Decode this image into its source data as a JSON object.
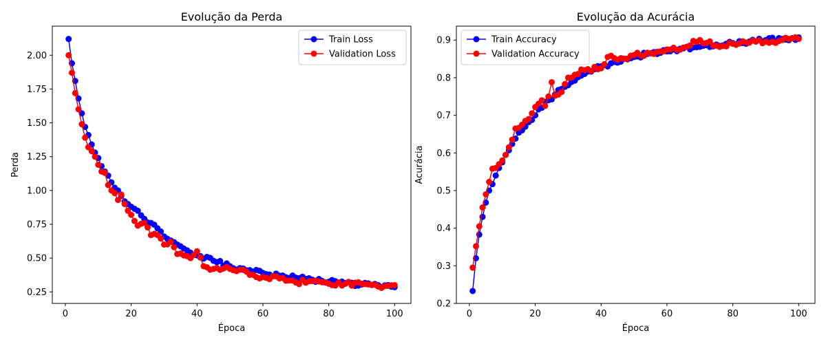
{
  "chart_data": [
    {
      "type": "line",
      "title": "Evolução da Perda",
      "xlabel": "Época",
      "ylabel": "Perda",
      "xlim": [
        -3.95,
        104.95
      ],
      "ylim": [
        0.165,
        2.215
      ],
      "xticks": [
        0,
        20,
        40,
        60,
        80,
        100
      ],
      "yticks": [
        0.25,
        0.5,
        0.75,
        1.0,
        1.25,
        1.5,
        1.75,
        2.0
      ],
      "ytick_labels": [
        "0.25",
        "0.50",
        "0.75",
        "1.00",
        "1.25",
        "1.50",
        "1.75",
        "2.00"
      ],
      "grid": false,
      "legend": "top-right",
      "series": [
        {
          "name": "Train Loss",
          "color": "#0000ff",
          "anchors": [
            [
              1,
              2.12
            ],
            [
              2,
              1.94
            ],
            [
              3,
              1.81
            ],
            [
              4,
              1.68
            ],
            [
              5,
              1.57
            ],
            [
              6,
              1.47
            ],
            [
              7,
              1.41
            ],
            [
              8,
              1.34
            ],
            [
              9,
              1.28
            ],
            [
              10,
              1.24
            ],
            [
              11,
              1.18
            ],
            [
              12,
              1.14
            ],
            [
              13,
              1.11
            ],
            [
              14,
              1.06
            ],
            [
              15,
              1.02
            ],
            [
              16,
              1.0
            ],
            [
              17,
              0.96
            ],
            [
              18,
              0.92
            ],
            [
              19,
              0.9
            ],
            [
              20,
              0.88
            ],
            [
              22,
              0.85
            ],
            [
              24,
              0.79
            ],
            [
              26,
              0.76
            ],
            [
              28,
              0.72
            ],
            [
              30,
              0.66
            ],
            [
              32,
              0.63
            ],
            [
              34,
              0.6
            ],
            [
              36,
              0.57
            ],
            [
              38,
              0.54
            ],
            [
              40,
              0.52
            ],
            [
              45,
              0.48
            ],
            [
              50,
              0.44
            ],
            [
              55,
              0.41
            ],
            [
              60,
              0.39
            ],
            [
              65,
              0.37
            ],
            [
              70,
              0.355
            ],
            [
              75,
              0.34
            ],
            [
              80,
              0.325
            ],
            [
              85,
              0.315
            ],
            [
              90,
              0.305
            ],
            [
              95,
              0.3
            ],
            [
              100,
              0.285
            ]
          ]
        },
        {
          "name": "Validation Loss",
          "color": "#ff0000",
          "anchors": [
            [
              1,
              2.0
            ],
            [
              2,
              1.87
            ],
            [
              3,
              1.72
            ],
            [
              4,
              1.6
            ],
            [
              5,
              1.49
            ],
            [
              6,
              1.39
            ],
            [
              7,
              1.32
            ],
            [
              8,
              1.29
            ],
            [
              9,
              1.25
            ],
            [
              10,
              1.19
            ],
            [
              11,
              1.14
            ],
            [
              12,
              1.13
            ],
            [
              13,
              1.04
            ],
            [
              14,
              1.0
            ],
            [
              15,
              0.98
            ],
            [
              16,
              0.93
            ],
            [
              17,
              0.97
            ],
            [
              18,
              0.9
            ],
            [
              19,
              0.85
            ],
            [
              20,
              0.82
            ],
            [
              22,
              0.74
            ],
            [
              24,
              0.76
            ],
            [
              26,
              0.67
            ],
            [
              28,
              0.67
            ],
            [
              30,
              0.6
            ],
            [
              32,
              0.62
            ],
            [
              34,
              0.53
            ],
            [
              36,
              0.52
            ],
            [
              38,
              0.5
            ],
            [
              40,
              0.55
            ],
            [
              42,
              0.44
            ],
            [
              45,
              0.42
            ],
            [
              50,
              0.42
            ],
            [
              55,
              0.4
            ],
            [
              58,
              0.36
            ],
            [
              60,
              0.36
            ],
            [
              65,
              0.35
            ],
            [
              70,
              0.32
            ],
            [
              75,
              0.33
            ],
            [
              80,
              0.31
            ],
            [
              85,
              0.31
            ],
            [
              90,
              0.31
            ],
            [
              95,
              0.29
            ],
            [
              100,
              0.3
            ]
          ]
        }
      ]
    },
    {
      "type": "line",
      "title": "Evolução da Acurácia",
      "xlabel": "Época",
      "ylabel": "Acurácia",
      "xlim": [
        -3.95,
        104.95
      ],
      "ylim": [
        0.2,
        0.937
      ],
      "xticks": [
        0,
        20,
        40,
        60,
        80,
        100
      ],
      "yticks": [
        0.2,
        0.3,
        0.4,
        0.5,
        0.6,
        0.7,
        0.8,
        0.9
      ],
      "ytick_labels": [
        "0.2",
        "0.3",
        "0.4",
        "0.5",
        "0.6",
        "0.7",
        "0.8",
        "0.9"
      ],
      "grid": false,
      "legend": "top-left",
      "series": [
        {
          "name": "Train Accuracy",
          "color": "#0000ff",
          "anchors": [
            [
              1,
              0.233
            ],
            [
              2,
              0.32
            ],
            [
              3,
              0.383
            ],
            [
              4,
              0.43
            ],
            [
              5,
              0.468
            ],
            [
              6,
              0.5
            ],
            [
              7,
              0.517
            ],
            [
              8,
              0.54
            ],
            [
              9,
              0.56
            ],
            [
              10,
              0.575
            ],
            [
              12,
              0.607
            ],
            [
              14,
              0.638
            ],
            [
              16,
              0.66
            ],
            [
              18,
              0.682
            ],
            [
              20,
              0.7
            ],
            [
              22,
              0.72
            ],
            [
              24,
              0.74
            ],
            [
              26,
              0.755
            ],
            [
              28,
              0.77
            ],
            [
              30,
              0.78
            ],
            [
              35,
              0.81
            ],
            [
              40,
              0.83
            ],
            [
              45,
              0.84
            ],
            [
              50,
              0.855
            ],
            [
              55,
              0.865
            ],
            [
              60,
              0.87
            ],
            [
              65,
              0.878
            ],
            [
              70,
              0.882
            ],
            [
              75,
              0.888
            ],
            [
              80,
              0.892
            ],
            [
              85,
              0.896
            ],
            [
              90,
              0.9
            ],
            [
              95,
              0.903
            ],
            [
              100,
              0.907
            ]
          ]
        },
        {
          "name": "Validation Accuracy",
          "color": "#ff0000",
          "anchors": [
            [
              1,
              0.295
            ],
            [
              2,
              0.352
            ],
            [
              3,
              0.405
            ],
            [
              4,
              0.455
            ],
            [
              5,
              0.49
            ],
            [
              6,
              0.523
            ],
            [
              7,
              0.558
            ],
            [
              8,
              0.56
            ],
            [
              9,
              0.57
            ],
            [
              10,
              0.58
            ],
            [
              12,
              0.615
            ],
            [
              14,
              0.665
            ],
            [
              16,
              0.675
            ],
            [
              18,
              0.69
            ],
            [
              20,
              0.722
            ],
            [
              22,
              0.74
            ],
            [
              23,
              0.725
            ],
            [
              24,
              0.75
            ],
            [
              25,
              0.788
            ],
            [
              26,
              0.752
            ],
            [
              28,
              0.762
            ],
            [
              30,
              0.8
            ],
            [
              35,
              0.82
            ],
            [
              40,
              0.825
            ],
            [
              42,
              0.855
            ],
            [
              45,
              0.848
            ],
            [
              50,
              0.86
            ],
            [
              55,
              0.865
            ],
            [
              60,
              0.875
            ],
            [
              65,
              0.88
            ],
            [
              70,
              0.9
            ],
            [
              75,
              0.885
            ],
            [
              80,
              0.89
            ],
            [
              85,
              0.893
            ],
            [
              90,
              0.896
            ],
            [
              95,
              0.9
            ],
            [
              100,
              0.903
            ]
          ]
        }
      ]
    }
  ]
}
